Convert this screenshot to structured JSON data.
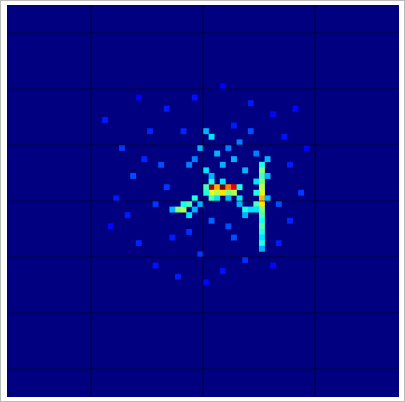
{
  "chart_data": {
    "type": "heatmap",
    "colormap": "jet",
    "clim": [
      0,
      1
    ],
    "grid": true,
    "grid_color": "#000000",
    "xlim": [
      0,
      7
    ],
    "ylim": [
      0,
      7
    ],
    "xticks": [
      1.5,
      3.5,
      5.5
    ],
    "yticks": [
      0.5,
      1.5,
      2.5,
      3.5,
      4.5,
      5.5,
      6.5
    ],
    "x": [
      3.6,
      3.7,
      3.8,
      3.9,
      4.0,
      3.6,
      3.7,
      3.8,
      3.9,
      4.0,
      3.5,
      3.5,
      3.6,
      3.8,
      4.1,
      3.6,
      3.7,
      3.9,
      4.1,
      4.1,
      4.2,
      4.3,
      4.2,
      4.5,
      4.5,
      4.5,
      4.5,
      4.5,
      4.5,
      4.5,
      4.5,
      4.5,
      4.5,
      4.5,
      4.5,
      4.5,
      4.5,
      4.5,
      4.5,
      4.4,
      4.4,
      4.4,
      4.4,
      4.6,
      4.6,
      4.6,
      3.0,
      3.1,
      3.2,
      3.1,
      3.2,
      3.3,
      3.3,
      3.4,
      2.9,
      3.5,
      3.6,
      3.4,
      3.7,
      3.3,
      3.8,
      3.5,
      3.6,
      3.9,
      4.0,
      4.2,
      4.1,
      3.2,
      4.4,
      4.3,
      1.7,
      2.0,
      2.2,
      1.9,
      1.8,
      2.3,
      2.6,
      3.0,
      3.4,
      3.8,
      4.2,
      4.8,
      5.0,
      5.2,
      5.0,
      4.9,
      4.7,
      4.3,
      3.8,
      3.3,
      2.8,
      2.5,
      2.7,
      2.6,
      2.9,
      3.2,
      4.0,
      4.7,
      5.3,
      5.1,
      2.3,
      2.1,
      3.6,
      3.9,
      4.0,
      3.1,
      2.8,
      4.8,
      3.5,
      2.4
    ],
    "y": [
      3.2,
      3.2,
      3.2,
      3.2,
      3.2,
      3.3,
      3.3,
      3.3,
      3.3,
      3.3,
      3.2,
      3.3,
      3.1,
      3.1,
      3.2,
      3.4,
      3.4,
      3.4,
      3.4,
      3.5,
      3.6,
      3.6,
      3.7,
      2.8,
      2.9,
      3.0,
      3.1,
      3.2,
      3.3,
      3.4,
      3.5,
      3.6,
      3.7,
      3.8,
      3.9,
      4.0,
      4.1,
      4.2,
      4.3,
      3.1,
      3.3,
      3.5,
      3.6,
      3.0,
      3.4,
      2.7,
      3.6,
      3.6,
      3.5,
      3.5,
      3.7,
      3.4,
      3.6,
      3.5,
      3.6,
      2.2,
      2.3,
      2.5,
      2.6,
      2.7,
      2.8,
      2.9,
      3.0,
      2.5,
      2.7,
      2.9,
      2.4,
      2.8,
      2.6,
      2.2,
      2.0,
      2.5,
      3.0,
      3.4,
      3.9,
      4.2,
      4.6,
      4.8,
      4.4,
      4.7,
      4.5,
      4.2,
      3.8,
      3.3,
      2.8,
      2.3,
      1.9,
      1.7,
      1.4,
      1.6,
      1.8,
      2.2,
      2.8,
      3.5,
      4.1,
      4.0,
      4.1,
      4.6,
      2.5,
      1.8,
      1.6,
      3.7,
      3.8,
      3.9,
      2.1,
      2.2,
      3.2,
      3.5,
      4.9,
      2.7
    ],
    "values": [
      0.95,
      0.7,
      1.0,
      0.75,
      0.9,
      0.6,
      0.55,
      0.65,
      0.5,
      0.55,
      0.45,
      0.4,
      0.4,
      0.35,
      0.4,
      0.45,
      0.35,
      0.3,
      0.35,
      0.3,
      0.4,
      0.35,
      0.3,
      0.4,
      0.5,
      0.45,
      0.5,
      0.55,
      0.6,
      0.7,
      0.65,
      0.5,
      0.45,
      0.4,
      0.45,
      0.4,
      0.35,
      0.4,
      0.3,
      0.35,
      0.4,
      0.45,
      0.35,
      0.3,
      0.3,
      0.3,
      0.5,
      0.55,
      0.45,
      0.4,
      0.35,
      0.4,
      0.3,
      0.3,
      0.3,
      0.3,
      0.35,
      0.3,
      0.3,
      0.25,
      0.3,
      0.35,
      0.3,
      0.25,
      0.3,
      0.3,
      0.25,
      0.25,
      0.25,
      0.2,
      0.15,
      0.18,
      0.2,
      0.15,
      0.13,
      0.16,
      0.14,
      0.15,
      0.18,
      0.14,
      0.17,
      0.15,
      0.16,
      0.18,
      0.15,
      0.14,
      0.13,
      0.15,
      0.12,
      0.14,
      0.15,
      0.16,
      0.2,
      0.18,
      0.15,
      0.17,
      0.2,
      0.13,
      0.12,
      0.13,
      0.12,
      0.15,
      0.22,
      0.2,
      0.15,
      0.16,
      0.18,
      0.2,
      0.13,
      0.16
    ]
  }
}
